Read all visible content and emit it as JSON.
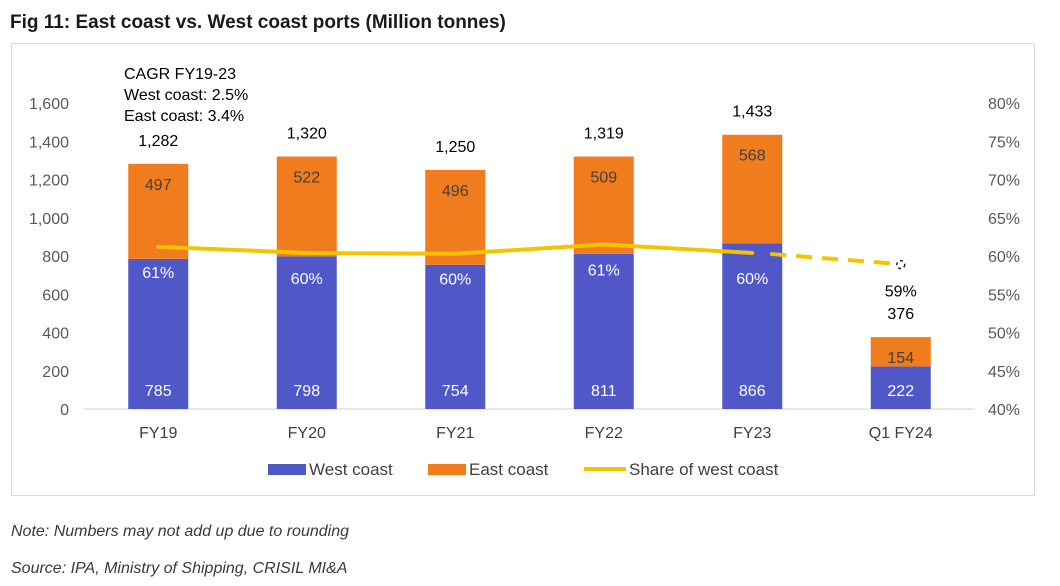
{
  "title": "Fig 11: East coast vs. West coast ports (Million tonnes)",
  "note": "Note: Numbers may not add up due to rounding",
  "source": "Source: IPA, Ministry of Shipping, CRISIL MI&A",
  "annotation": [
    "CAGR FY19-23",
    "West coast: 2.5%",
    "East coast: 3.4%"
  ],
  "colors": {
    "west": "#5058c8",
    "east": "#f07c1e",
    "share": "#f5c400"
  },
  "chart_data": {
    "type": "bar",
    "stacked": true,
    "categories": [
      "FY19",
      "FY20",
      "FY21",
      "FY22",
      "FY23",
      "Q1 FY24"
    ],
    "series": [
      {
        "name": "West coast",
        "values": [
          785,
          798,
          754,
          811,
          866,
          222
        ],
        "value_labels": [
          "785",
          "798",
          "754",
          "811",
          "866",
          "222"
        ]
      },
      {
        "name": "East coast",
        "values": [
          497,
          522,
          496,
          509,
          568,
          154
        ],
        "value_labels": [
          "497",
          "522",
          "496",
          "509",
          "568",
          "154"
        ]
      }
    ],
    "totals": [
      1282,
      1320,
      1250,
      1319,
      1433,
      376
    ],
    "total_labels": [
      "1,282",
      "1,320",
      "1,250",
      "1,319",
      "1,433",
      "376"
    ],
    "line_series": {
      "name": "Share of west coast",
      "axis": "secondary",
      "values": [
        61.2,
        60.4,
        60.3,
        61.5,
        60.4,
        59
      ],
      "labels": [
        "61%",
        "60%",
        "60%",
        "61%",
        "60%",
        "59%"
      ],
      "dashed_last_segment": true
    },
    "y_axis": {
      "min": 0,
      "max": 1600,
      "ticks": [
        0,
        200,
        400,
        600,
        800,
        1000,
        1200,
        1400,
        1600
      ],
      "tick_labels": [
        "0",
        "200",
        "400",
        "600",
        "800",
        "1,000",
        "1,200",
        "1,400",
        "1,600"
      ]
    },
    "y2_axis": {
      "min": 40,
      "max": 80,
      "ticks": [
        40,
        45,
        50,
        55,
        60,
        65,
        70,
        75,
        80
      ],
      "tick_labels": [
        "40%",
        "45%",
        "50%",
        "55%",
        "60%",
        "65%",
        "70%",
        "75%",
        "80%"
      ]
    },
    "legend": {
      "position": "bottom",
      "entries": [
        "West coast",
        "East coast",
        "Share of west coast"
      ]
    },
    "grid": false
  }
}
